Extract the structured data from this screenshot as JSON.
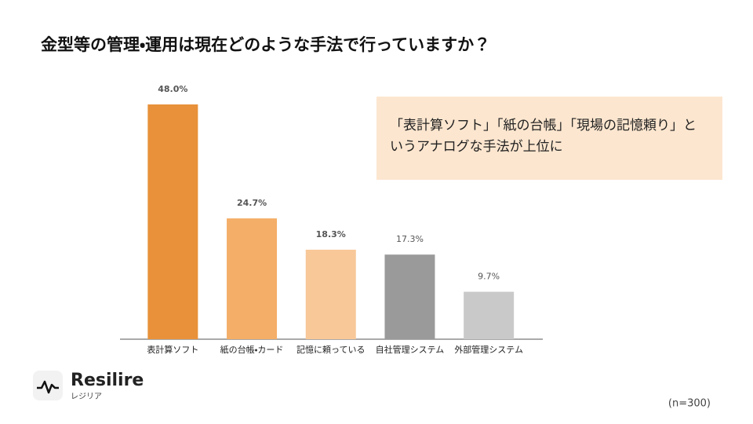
{
  "chart_data": {
    "type": "bar",
    "title": "金型等の管理・運用は現在どのような手法で行っていますか？",
    "categories": [
      "表計算ソフト",
      "紙の台帳・カード",
      "記憶に頼っている",
      "自社管理システム",
      "外部管理システム"
    ],
    "values": [
      48.0,
      24.7,
      18.3,
      17.3,
      9.7
    ],
    "value_labels": [
      "48.0%",
      "24.7%",
      "18.3%",
      "17.3%",
      "9.7%"
    ],
    "colors": [
      "#e8913a",
      "#f4ae67",
      "#f8c898",
      "#9a9a9a",
      "#c9c9c9"
    ],
    "annotation": "「表計算ソフト」「紙の台帳」「現場の記憶頼り」というアナログな手法が上位に",
    "note": "(n=300)"
  },
  "logo": {
    "name": "Resilire",
    "subtitle": "レジリア"
  }
}
